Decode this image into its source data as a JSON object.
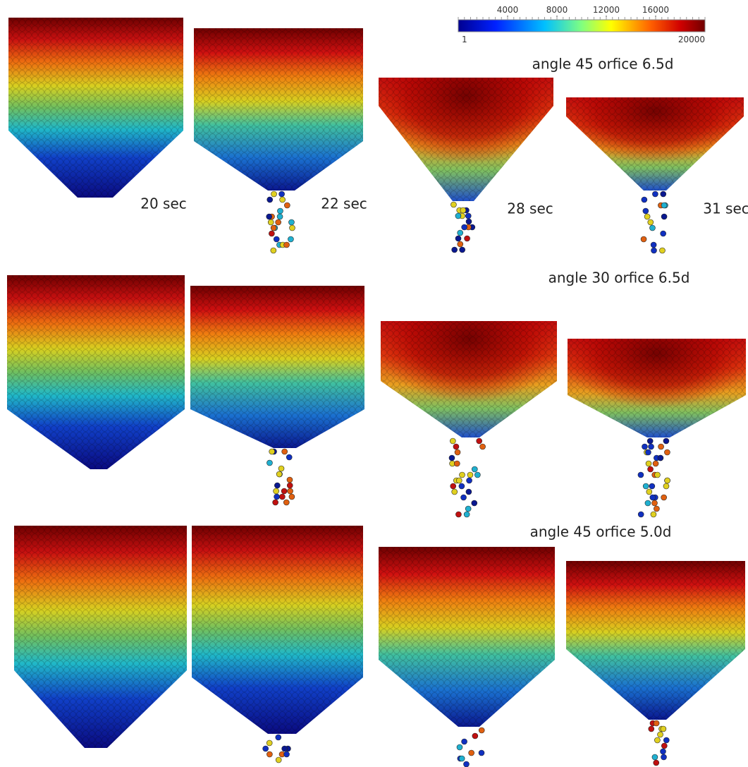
{
  "colorbar": {
    "range": [
      1,
      20000
    ],
    "ticks": [
      4000,
      8000,
      12000,
      16000
    ]
  },
  "times": [
    "20 sec",
    "22 sec",
    "28 sec",
    "31 sec"
  ],
  "rows": [
    {
      "label": "angle 45 orfice 6.5d"
    },
    {
      "label": "angle 30 orfice 6.5d"
    },
    {
      "label": "angle 45 orfice 5.0d"
    }
  ]
}
